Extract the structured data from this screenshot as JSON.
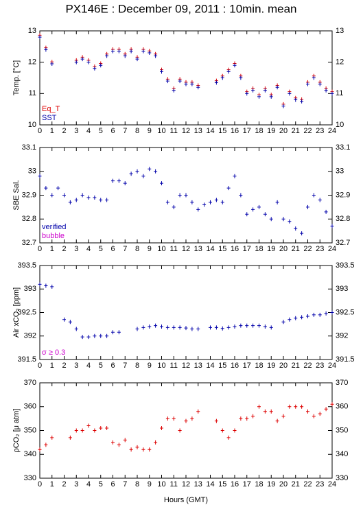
{
  "title": "PX146E : December 09, 2011 : 10min. mean",
  "xlabel": "Hours (GMT)",
  "chart_data": [
    {
      "type": "scatter",
      "ylabel": "Temp. [°C]",
      "xlim": [
        0,
        24
      ],
      "ylim": [
        10,
        13
      ],
      "xticks": [
        0,
        1,
        2,
        3,
        4,
        5,
        6,
        7,
        8,
        9,
        10,
        11,
        12,
        13,
        14,
        15,
        16,
        17,
        18,
        19,
        20,
        21,
        22,
        23,
        24
      ],
      "yticks": [
        10,
        11,
        12,
        13
      ],
      "legend": "lower left",
      "x": [
        0,
        0.5,
        1,
        1.5,
        2,
        2.5,
        3,
        3.5,
        4,
        4.5,
        5,
        5.5,
        6,
        6.5,
        7,
        7.5,
        8,
        8.5,
        9,
        9.5,
        10,
        10.5,
        11,
        11.5,
        12,
        12.5,
        13,
        13.5,
        14,
        14.5,
        15,
        15.5,
        16,
        16.5,
        17,
        17.5,
        18,
        18.5,
        19,
        19.5,
        20,
        20.5,
        21,
        21.5,
        22,
        22.5,
        23,
        23.5,
        24
      ],
      "series": [
        {
          "name": "Eq_T",
          "color": "#dd0000",
          "values": [
            12.86,
            12.46,
            12.01,
            null,
            null,
            null,
            12.06,
            12.16,
            12.06,
            11.86,
            11.96,
            12.26,
            12.41,
            12.41,
            12.26,
            12.41,
            12.16,
            12.41,
            12.36,
            12.26,
            11.76,
            11.46,
            11.16,
            11.46,
            11.36,
            11.36,
            11.26,
            null,
            null,
            11.41,
            11.56,
            11.76,
            11.96,
            11.56,
            11.06,
            11.16,
            10.96,
            11.16,
            10.96,
            11.26,
            10.66,
            11.06,
            10.86,
            10.81,
            11.36,
            11.56,
            11.36,
            11.16,
            11.06
          ]
        },
        {
          "name": "SST",
          "color": "#0000aa",
          "values": [
            12.8,
            12.4,
            11.95,
            null,
            null,
            null,
            12.0,
            12.1,
            12.0,
            11.8,
            11.9,
            12.2,
            12.35,
            12.35,
            12.2,
            12.35,
            12.1,
            12.35,
            12.3,
            12.2,
            11.7,
            11.4,
            11.1,
            11.4,
            11.3,
            11.3,
            11.2,
            null,
            null,
            11.35,
            11.5,
            11.7,
            11.9,
            11.5,
            11.0,
            11.1,
            10.9,
            11.1,
            10.9,
            11.2,
            10.6,
            11.0,
            10.8,
            10.75,
            11.3,
            11.5,
            11.3,
            11.1,
            11.0
          ]
        }
      ]
    },
    {
      "type": "scatter",
      "ylabel": "SBE Sal.",
      "xlim": [
        0,
        24
      ],
      "ylim": [
        32.7,
        33.1
      ],
      "xticks": [
        0,
        1,
        2,
        3,
        4,
        5,
        6,
        7,
        8,
        9,
        10,
        11,
        12,
        13,
        14,
        15,
        16,
        17,
        18,
        19,
        20,
        21,
        22,
        23,
        24
      ],
      "yticks": [
        32.7,
        32.8,
        32.9,
        33,
        33.1
      ],
      "legend": "lower left",
      "x": [
        0,
        0.5,
        1,
        1.5,
        2,
        2.5,
        3,
        3.5,
        4,
        4.5,
        5,
        5.5,
        6,
        6.5,
        7,
        7.5,
        8,
        8.5,
        9,
        9.5,
        10,
        10.5,
        11,
        11.5,
        12,
        12.5,
        13,
        13.5,
        14,
        14.5,
        15,
        15.5,
        16,
        16.5,
        17,
        17.5,
        18,
        18.5,
        19,
        19.5,
        20,
        20.5,
        21,
        21.5,
        22,
        22.5,
        23,
        23.5,
        24
      ],
      "series": [
        {
          "name": "verified",
          "color": "#0000aa",
          "values": [
            32.98,
            32.93,
            32.9,
            32.93,
            32.9,
            32.87,
            32.88,
            32.9,
            32.89,
            32.89,
            32.88,
            32.88,
            32.96,
            32.96,
            32.95,
            32.99,
            33.0,
            32.98,
            33.01,
            33.0,
            32.95,
            32.87,
            32.85,
            32.9,
            32.9,
            32.87,
            32.84,
            32.86,
            32.87,
            32.88,
            32.87,
            32.93,
            32.98,
            32.9,
            32.82,
            32.84,
            32.85,
            32.82,
            32.8,
            32.87,
            32.8,
            32.79,
            32.76,
            32.74,
            32.85,
            32.9,
            32.88,
            32.83,
            32.77
          ]
        },
        {
          "name": "bubble",
          "color": "#cc00cc"
        }
      ]
    },
    {
      "type": "scatter",
      "ylabel": "Air xCO₂ [ppm]",
      "xlim": [
        0,
        24
      ],
      "ylim": [
        391.5,
        393.5
      ],
      "xticks": [
        0,
        1,
        2,
        3,
        4,
        5,
        6,
        7,
        8,
        9,
        10,
        11,
        12,
        13,
        14,
        15,
        16,
        17,
        18,
        19,
        20,
        21,
        22,
        23,
        24
      ],
      "yticks": [
        391.5,
        392,
        392.5,
        393,
        393.5
      ],
      "legend": "lower left",
      "x": [
        0,
        0.5,
        1,
        1.5,
        2,
        2.5,
        3,
        3.5,
        4,
        4.5,
        5,
        5.5,
        6,
        6.5,
        7,
        7.5,
        8,
        8.5,
        9,
        9.5,
        10,
        10.5,
        11,
        11.5,
        12,
        12.5,
        13,
        13.5,
        14,
        14.5,
        15,
        15.5,
        16,
        16.5,
        17,
        17.5,
        18,
        18.5,
        19,
        19.5,
        20,
        20.5,
        21,
        21.5,
        22,
        22.5,
        23,
        23.5,
        24
      ],
      "series": [
        {
          "color": "#0000aa",
          "values": [
            393.1,
            393.07,
            393.05,
            null,
            392.35,
            392.3,
            392.15,
            391.98,
            391.98,
            392.0,
            392.0,
            392.0,
            392.08,
            392.08,
            null,
            null,
            392.15,
            392.18,
            392.2,
            392.22,
            392.2,
            392.18,
            392.18,
            392.18,
            392.17,
            392.15,
            392.15,
            null,
            392.18,
            392.18,
            392.16,
            392.18,
            392.2,
            392.22,
            392.22,
            392.22,
            392.22,
            392.2,
            392.18,
            null,
            392.3,
            392.35,
            392.38,
            392.4,
            392.42,
            392.45,
            392.45,
            392.48,
            392.5
          ]
        },
        {
          "name": "σ ≥ 0.3",
          "color": "#cc00cc"
        }
      ]
    },
    {
      "type": "scatter",
      "ylabel": "ρCO₂ [μ atm]",
      "xlim": [
        0,
        24
      ],
      "ylim": [
        330,
        370
      ],
      "xticks": [
        0,
        1,
        2,
        3,
        4,
        5,
        6,
        7,
        8,
        9,
        10,
        11,
        12,
        13,
        14,
        15,
        16,
        17,
        18,
        19,
        20,
        21,
        22,
        23,
        24
      ],
      "yticks": [
        330,
        340,
        350,
        360,
        370
      ],
      "x": [
        0,
        0.5,
        1,
        1.5,
        2,
        2.5,
        3,
        3.5,
        4,
        4.5,
        5,
        5.5,
        6,
        6.5,
        7,
        7.5,
        8,
        8.5,
        9,
        9.5,
        10,
        10.5,
        11,
        11.5,
        12,
        12.5,
        13,
        13.5,
        14,
        14.5,
        15,
        15.5,
        16,
        16.5,
        17,
        17.5,
        18,
        18.5,
        19,
        19.5,
        20,
        20.5,
        21,
        21.5,
        22,
        22.5,
        23,
        23.5,
        24
      ],
      "series": [
        {
          "color": "#dd0000",
          "values": [
            342,
            344,
            347,
            null,
            null,
            347,
            350,
            350,
            352,
            350,
            351,
            351,
            345,
            344,
            346,
            342,
            343,
            342,
            342,
            345,
            351,
            355,
            355,
            350,
            354,
            355,
            358,
            null,
            null,
            354,
            350,
            347,
            350,
            355,
            355,
            356,
            360,
            358,
            358,
            354,
            356,
            360,
            360,
            360,
            358,
            356,
            357,
            359,
            361
          ]
        }
      ]
    }
  ]
}
